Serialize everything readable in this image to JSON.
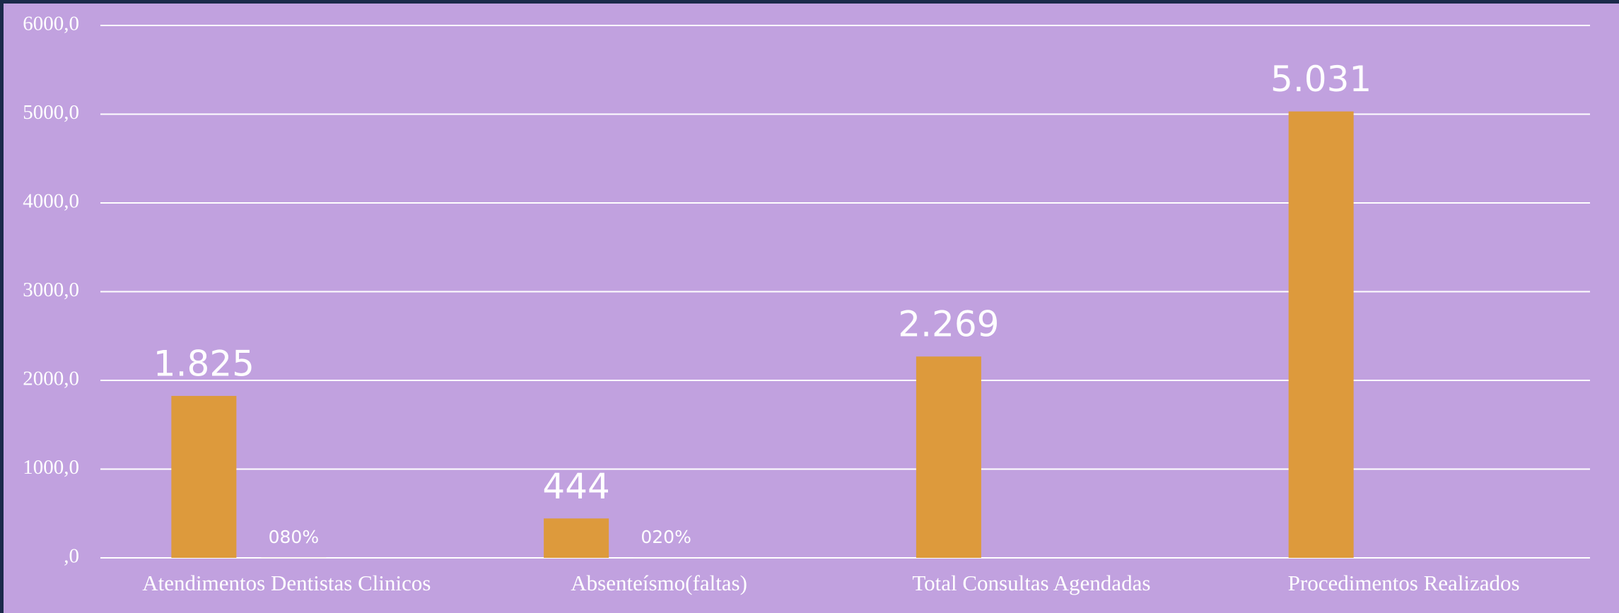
{
  "chart_data": {
    "type": "bar",
    "categories": [
      "Atendimentos Dentistas Clinicos",
      "Absenteísmo(faltas)",
      "Total Consultas Agendadas",
      "Procedimentos Realizados"
    ],
    "series": [
      {
        "color": "#dd9a3c",
        "values": [
          1825,
          444,
          2269,
          5031
        ],
        "value_labels": [
          "1.825",
          "444",
          "2.269",
          "5.031"
        ]
      },
      {
        "color": "#dd9a3c",
        "values": [
          0.8,
          0.2,
          null,
          null
        ],
        "value_labels": [
          "080%",
          "020%",
          null,
          null
        ]
      }
    ],
    "ylim": [
      0,
      6000
    ],
    "yticks": [
      {
        "value": 0,
        "label": ",0"
      },
      {
        "value": 1000,
        "label": "1000,0"
      },
      {
        "value": 2000,
        "label": "2000,0"
      },
      {
        "value": 3000,
        "label": "3000,0"
      },
      {
        "value": 4000,
        "label": "4000,0"
      },
      {
        "value": 5000,
        "label": "5000,0"
      },
      {
        "value": 6000,
        "label": "6000,0"
      }
    ],
    "grid": true
  }
}
